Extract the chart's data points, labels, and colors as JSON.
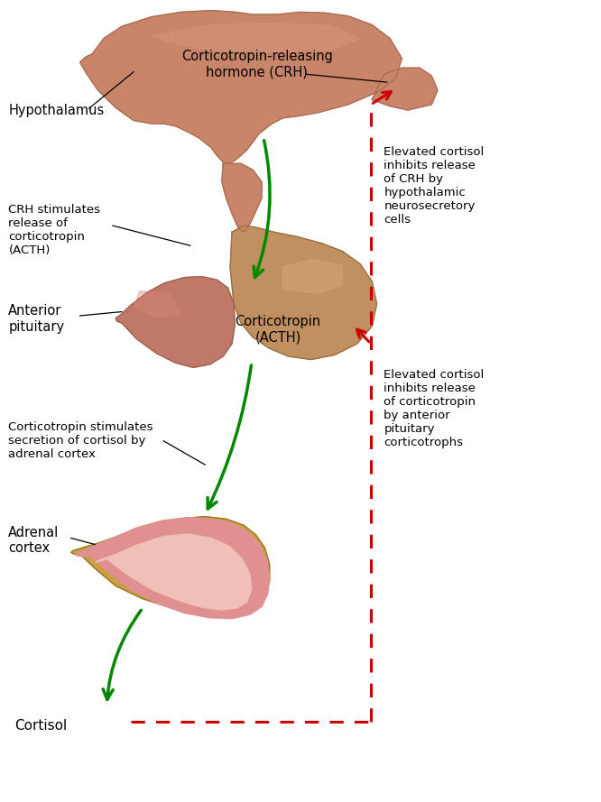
{
  "bg_color": "#ffffff",
  "labels": {
    "hypothalamus": "Hypothalamus",
    "crh": "Corticotropin-releasing\nhormone (CRH)",
    "crh_stimulates": "CRH stimulates\nrelease of\ncorticotropin\n(ACTH)",
    "anterior_pituitary": "Anterior\npituitary",
    "corticotropin": "Corticotropin\n(ACTH)",
    "corticotropin_stimulates": "Corticotropin stimulates\nsecretion of cortisol by\nadrenal cortex",
    "adrenal_cortex": "Adrenal\ncortex",
    "cortisol": "Cortisol",
    "elevated1": "Elevated cortisol\ninhibits release\nof CRH by\nhypothalamic\nneurosecretory\ncells",
    "elevated2": "Elevated cortisol\ninhibits release\nof corticotropin\nby anterior\npituitary\ncorticotrophs"
  },
  "green_arrow_color": "#008800",
  "red_arrow_color": "#cc0000",
  "hypo_color": "#c8856a",
  "hypo_dark": "#a86850",
  "post_pit_color": "#c09060",
  "post_pit_dark": "#9a7040",
  "ant_pit_color": "#c07868",
  "ant_pit_dark": "#a06050",
  "adrenal_outer": "#c8a040",
  "adrenal_outer_dark": "#a07820",
  "adrenal_cortex_color": "#e09090",
  "adrenal_medulla": "#f0c0b8",
  "adrenal_stripe": "#c87070"
}
